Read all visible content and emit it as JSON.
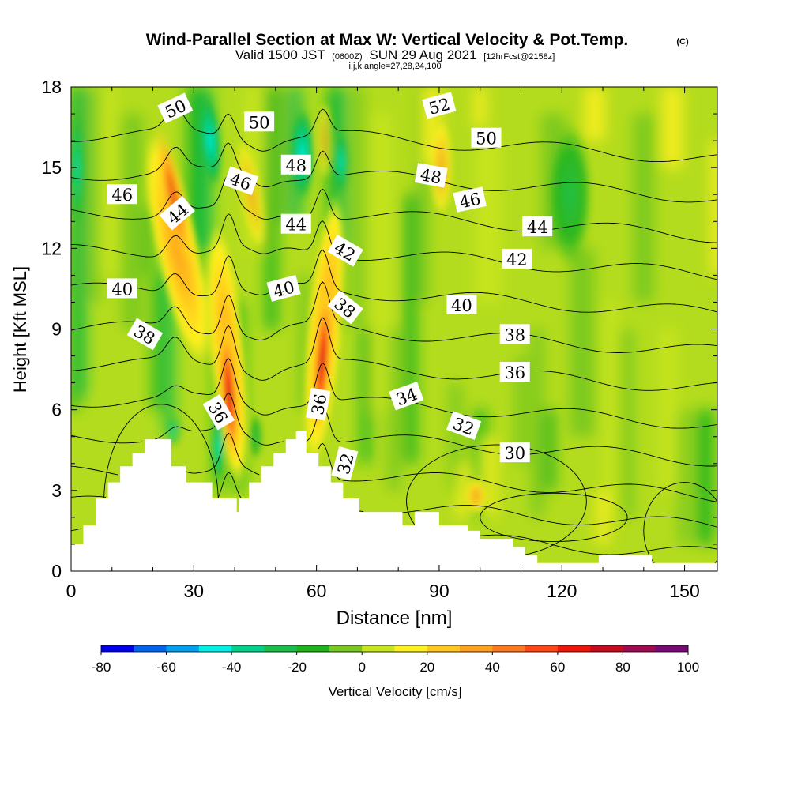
{
  "header": {
    "title": "Wind-Parallel Section at Max W: Vertical Velocity & Pot.Temp.",
    "title_suffix": "(C)",
    "valid_prefix": "Valid 1500 JST",
    "valid_zulu": "(0600Z)",
    "valid_date": "SUN 29 Aug 2021",
    "forecast_tag": "[12hrFcst@2158z]",
    "ijk_line": "i,j,k,angle=27,28,24,100"
  },
  "chart_data": {
    "type": "heatmap",
    "title": "Wind-Parallel Section at Max W: Vertical Velocity & Pot.Temp.",
    "xlabel": "Distance [nm]",
    "ylabel": "Height [Kft MSL]",
    "xlim": [
      0,
      158
    ],
    "ylim": [
      0,
      18
    ],
    "x_ticks": [
      0,
      30,
      60,
      90,
      120,
      150
    ],
    "x_tick_labels": [
      "0",
      "30",
      "60",
      "90",
      "120",
      "150"
    ],
    "y_ticks": [
      0,
      3,
      6,
      9,
      12,
      15,
      18
    ],
    "y_tick_labels": [
      "0",
      "3",
      "6",
      "9",
      "12",
      "15",
      "18"
    ],
    "colorbar": {
      "label": "Vertical Velocity [cm/s]",
      "min": -80,
      "max": 100,
      "step": 10,
      "tick_values": [
        -80,
        -60,
        -40,
        -20,
        0,
        20,
        40,
        60,
        80,
        100
      ],
      "tick_labels": [
        "-80",
        "-60",
        "-40",
        "-20",
        "0",
        "20",
        "40",
        "60",
        "80",
        "100"
      ],
      "colors": [
        "#0000f0",
        "#0064f0",
        "#00a0f0",
        "#00f0e6",
        "#00d28c",
        "#19be4b",
        "#1eb41e",
        "#78c81e",
        "#c8e61e",
        "#fff01e",
        "#ffc81e",
        "#ffa01e",
        "#ff781e",
        "#ff4614",
        "#f0140a",
        "#c80a1e",
        "#a00a50",
        "#780a78"
      ]
    },
    "updrafts": [
      {
        "x": 26,
        "y_range": [
          7,
          17
        ],
        "w_max": 35
      },
      {
        "x": 38.5,
        "y_range": [
          4,
          10
        ],
        "w_max": 65
      },
      {
        "x": 61.5,
        "y_range": [
          5,
          11
        ],
        "w_max": 70
      },
      {
        "x": 90,
        "y_range": [
          13,
          18
        ],
        "w_max": 20
      }
    ],
    "downdrafts": [
      {
        "x": 34,
        "y_range": [
          12,
          18
        ],
        "w_min": -40
      },
      {
        "x": 55,
        "y_range": [
          12,
          18
        ],
        "w_min": -35
      },
      {
        "x": 36,
        "y_range": [
          3,
          6
        ],
        "w_min": -25
      },
      {
        "x": 2.5,
        "y_range": [
          6,
          18
        ],
        "w_min": -20
      }
    ],
    "theta_levels": [
      30,
      32,
      34,
      36,
      38,
      40,
      42,
      44,
      46,
      48,
      50,
      52
    ],
    "contour_labels": [
      {
        "text": "50",
        "x": 25.5,
        "y": 17.2,
        "angle": -25
      },
      {
        "text": "50",
        "x": 46,
        "y": 16.7,
        "angle": 0
      },
      {
        "text": "52",
        "x": 90,
        "y": 17.3,
        "angle": -15
      },
      {
        "text": "50",
        "x": 101.5,
        "y": 16.1,
        "angle": 0
      },
      {
        "text": "48",
        "x": 55,
        "y": 15.1,
        "angle": 0
      },
      {
        "text": "48",
        "x": 88,
        "y": 14.7,
        "angle": 10
      },
      {
        "text": "46",
        "x": 12.5,
        "y": 14.0,
        "angle": 0
      },
      {
        "text": "46",
        "x": 41.5,
        "y": 14.5,
        "angle": 20
      },
      {
        "text": "46",
        "x": 97.5,
        "y": 13.8,
        "angle": -12
      },
      {
        "text": "44",
        "x": 26,
        "y": 13.3,
        "angle": -40
      },
      {
        "text": "44",
        "x": 55,
        "y": 12.9,
        "angle": 0
      },
      {
        "text": "44",
        "x": 114,
        "y": 12.8,
        "angle": 0
      },
      {
        "text": "42",
        "x": 67,
        "y": 11.9,
        "angle": 30
      },
      {
        "text": "42",
        "x": 109,
        "y": 11.6,
        "angle": 0
      },
      {
        "text": "40",
        "x": 12.5,
        "y": 10.5,
        "angle": 0
      },
      {
        "text": "40",
        "x": 52,
        "y": 10.5,
        "angle": -15
      },
      {
        "text": "40",
        "x": 95.5,
        "y": 9.9,
        "angle": 0
      },
      {
        "text": "38",
        "x": 18,
        "y": 8.8,
        "angle": 30
      },
      {
        "text": "38",
        "x": 67,
        "y": 9.8,
        "angle": 38
      },
      {
        "text": "38",
        "x": 108.5,
        "y": 8.8,
        "angle": 0
      },
      {
        "text": "36",
        "x": 36,
        "y": 5.9,
        "angle": 60
      },
      {
        "text": "36",
        "x": 60.5,
        "y": 6.2,
        "angle": -80
      },
      {
        "text": "36",
        "x": 108.5,
        "y": 7.4,
        "angle": 0
      },
      {
        "text": "34",
        "x": 82,
        "y": 6.5,
        "angle": -20
      },
      {
        "text": "32",
        "x": 96,
        "y": 5.4,
        "angle": 20
      },
      {
        "text": "32",
        "x": 67,
        "y": 4.0,
        "angle": -75
      },
      {
        "text": "30",
        "x": 108.5,
        "y": 4.4,
        "angle": 0
      }
    ],
    "terrain": [
      [
        0,
        1.0
      ],
      [
        3,
        1.0
      ],
      [
        3,
        1.7
      ],
      [
        6,
        1.7
      ],
      [
        6,
        2.7
      ],
      [
        9,
        2.7
      ],
      [
        9,
        3.3
      ],
      [
        12,
        3.3
      ],
      [
        12,
        3.9
      ],
      [
        15,
        3.9
      ],
      [
        15,
        4.4
      ],
      [
        18,
        4.4
      ],
      [
        18,
        4.9
      ],
      [
        24.5,
        4.9
      ],
      [
        24.5,
        3.9
      ],
      [
        28,
        3.9
      ],
      [
        28,
        3.3
      ],
      [
        34.5,
        3.3
      ],
      [
        34.5,
        2.7
      ],
      [
        40.5,
        2.7
      ],
      [
        40.5,
        2.2
      ],
      [
        41,
        2.2
      ],
      [
        41,
        2.7
      ],
      [
        43.5,
        2.7
      ],
      [
        43.5,
        3.3
      ],
      [
        46.5,
        3.3
      ],
      [
        46.5,
        3.9
      ],
      [
        49.5,
        3.9
      ],
      [
        49.5,
        4.4
      ],
      [
        52.5,
        4.4
      ],
      [
        52.5,
        4.9
      ],
      [
        55,
        4.9
      ],
      [
        55,
        5.2
      ],
      [
        57.5,
        5.2
      ],
      [
        57.5,
        4.4
      ],
      [
        60.5,
        4.4
      ],
      [
        60.5,
        3.9
      ],
      [
        63.5,
        3.9
      ],
      [
        63.5,
        3.3
      ],
      [
        66.5,
        3.3
      ],
      [
        66.5,
        2.7
      ],
      [
        70.5,
        2.7
      ],
      [
        70.5,
        2.2
      ],
      [
        81,
        2.2
      ],
      [
        81,
        1.7
      ],
      [
        84,
        1.7
      ],
      [
        84,
        2.2
      ],
      [
        90,
        2.2
      ],
      [
        90,
        1.7
      ],
      [
        97,
        1.7
      ],
      [
        97,
        1.5
      ],
      [
        100,
        1.5
      ],
      [
        100,
        1.2
      ],
      [
        108,
        1.2
      ],
      [
        108,
        0.9
      ],
      [
        111,
        0.9
      ],
      [
        111,
        0.6
      ],
      [
        114,
        0.6
      ],
      [
        114,
        0.3
      ],
      [
        129,
        0.3
      ],
      [
        129,
        0.6
      ],
      [
        142,
        0.6
      ],
      [
        142,
        0.3
      ],
      [
        158,
        0.3
      ],
      [
        158,
        0
      ]
    ]
  }
}
